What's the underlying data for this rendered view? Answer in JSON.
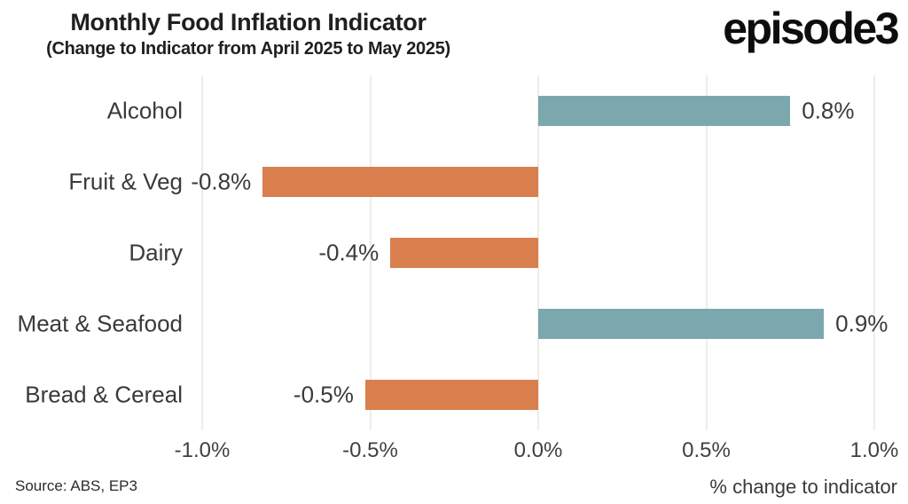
{
  "header": {
    "title": "Monthly Food Inflation Indicator",
    "subtitle": "(Change to Indicator from April 2025 to May 2025)",
    "logo": "episode3"
  },
  "footer": {
    "source": "Source: ABS, EP3",
    "axis_label": "% change to indicator"
  },
  "chart_data": {
    "type": "bar",
    "orientation": "horizontal",
    "title": "Monthly Food Inflation Indicator",
    "subtitle": "(Change to Indicator from April 2025 to May 2025)",
    "xlabel": "% change to indicator",
    "categories": [
      "Alcohol",
      "Fruit & Veg",
      "Dairy",
      "Meat & Seafood",
      "Bread & Cereal"
    ],
    "values": [
      0.8,
      -0.8,
      -0.4,
      0.9,
      -0.5
    ],
    "value_labels": [
      "0.8%",
      "-0.8%",
      "-0.4%",
      "0.9%",
      "-0.5%"
    ],
    "bar_values": [
      0.75,
      -0.82,
      -0.44,
      0.85,
      -0.515
    ],
    "xticks": [
      -1.0,
      -0.5,
      0.0,
      0.5,
      1.0
    ],
    "xtick_labels": [
      "-1.0%",
      "-0.5%",
      "0.0%",
      "0.5%",
      "1.0%"
    ],
    "xlim": [
      -1.6,
      1.1
    ],
    "grid": "vertical-only",
    "legend": "none",
    "colors": {
      "positive": "#7ba8ae",
      "negative": "#d97f4e",
      "gridline": "#f0ede4",
      "text": "#3a3a3a"
    },
    "source_note": "Source: ABS, EP3"
  }
}
